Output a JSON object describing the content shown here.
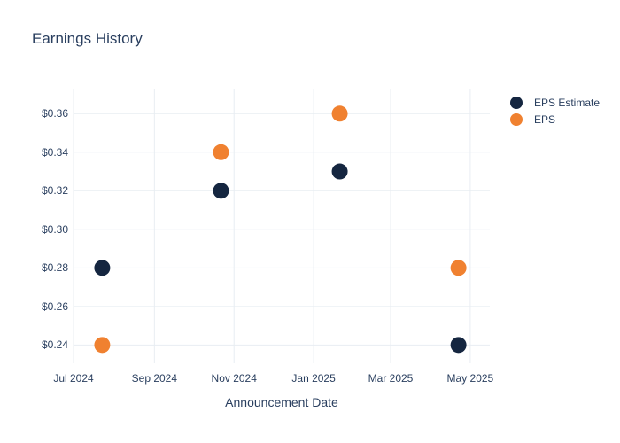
{
  "title": "Earnings History",
  "chart_data": {
    "type": "scatter",
    "title": "Earnings History",
    "xlabel": "Announcement Date",
    "ylabel": "",
    "x": [
      "2024-07-23",
      "2024-10-22",
      "2025-01-21",
      "2025-04-22"
    ],
    "series": [
      {
        "name": "EPS Estimate",
        "color": "#152640",
        "values": [
          0.28,
          0.32,
          0.33,
          0.24
        ]
      },
      {
        "name": "EPS",
        "color": "#f08130",
        "values": [
          0.24,
          0.34,
          0.36,
          0.28
        ]
      }
    ],
    "x_ticks": [
      {
        "label": "Jul 2024",
        "date": "2024-07-01"
      },
      {
        "label": "Sep 2024",
        "date": "2024-09-01"
      },
      {
        "label": "Nov 2024",
        "date": "2024-11-01"
      },
      {
        "label": "Jan 2025",
        "date": "2025-01-01"
      },
      {
        "label": "Mar 2025",
        "date": "2025-03-01"
      },
      {
        "label": "May 2025",
        "date": "2025-05-01"
      }
    ],
    "y_ticks": [
      {
        "label": "$0.24",
        "value": 0.24
      },
      {
        "label": "$0.26",
        "value": 0.26
      },
      {
        "label": "$0.28",
        "value": 0.28
      },
      {
        "label": "$0.30",
        "value": 0.3
      },
      {
        "label": "$0.32",
        "value": 0.32
      },
      {
        "label": "$0.34",
        "value": 0.34
      },
      {
        "label": "$0.36",
        "value": 0.36
      }
    ],
    "xlim": [
      "2024-07-01",
      "2025-05-16"
    ],
    "ylim": [
      0.2305,
      0.373
    ],
    "grid": true,
    "legend_position": "top-right",
    "marker_diameter_px": 18,
    "text_color": "#2a3f5f",
    "grid_color": "#e8edf2",
    "background": "#ffffff"
  }
}
